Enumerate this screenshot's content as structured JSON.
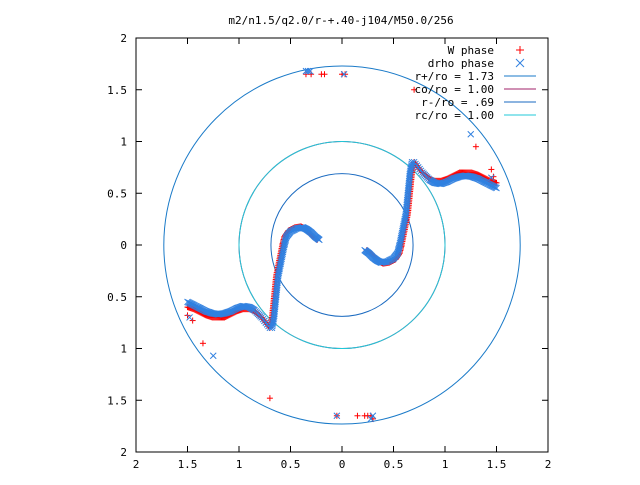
{
  "chart_data": {
    "type": "scatter",
    "title": "m2/n1.5/q2.0/r-+.40-j104/M50.0/256",
    "xlabel": "",
    "ylabel": "",
    "xlim": [
      -2,
      2
    ],
    "ylim": [
      -2,
      2
    ],
    "x_tick_values": [
      -2,
      -1.5,
      -1,
      -0.5,
      0,
      0.5,
      1,
      1.5,
      2
    ],
    "x_tick_labels": [
      "2",
      "1.5",
      "1",
      "0.5",
      "0",
      "0.5",
      "1",
      "1.5",
      "2"
    ],
    "y_tick_values": [
      2,
      1.5,
      1,
      0.5,
      0,
      -0.5,
      -1,
      -1.5,
      -2
    ],
    "y_tick_labels": [
      "2",
      "1.5",
      "1",
      "0.5",
      "0",
      "0.5",
      "1",
      "1.5",
      "2"
    ],
    "grid": false,
    "legend_position": "top-right",
    "series": [
      {
        "name": "W phase",
        "marker": "plus",
        "color": "#ff0000",
        "segments": [
          [
            [
              0.7,
              0.8
            ],
            [
              0.78,
              0.7
            ],
            [
              0.85,
              0.64
            ],
            [
              0.9,
              0.62
            ],
            [
              0.96,
              0.62
            ],
            [
              1.02,
              0.64
            ],
            [
              1.08,
              0.67
            ],
            [
              1.14,
              0.7
            ],
            [
              1.2,
              0.7
            ],
            [
              1.26,
              0.7
            ],
            [
              1.32,
              0.68
            ],
            [
              1.38,
              0.65
            ],
            [
              1.44,
              0.62
            ],
            [
              1.5,
              0.6
            ]
          ],
          [
            [
              0.7,
              0.8
            ],
            [
              0.68,
              0.7
            ],
            [
              0.67,
              0.6
            ],
            [
              0.66,
              0.5
            ],
            [
              0.65,
              0.4
            ],
            [
              0.64,
              0.3
            ],
            [
              0.62,
              0.2
            ],
            [
              0.6,
              0.1
            ],
            [
              0.58,
              0.0
            ],
            [
              0.56,
              -0.08
            ],
            [
              0.52,
              -0.14
            ],
            [
              0.46,
              -0.17
            ],
            [
              0.4,
              -0.18
            ],
            [
              0.36,
              -0.16
            ],
            [
              0.32,
              -0.12
            ],
            [
              0.28,
              -0.08
            ],
            [
              0.24,
              -0.05
            ]
          ],
          [
            [
              -0.7,
              -0.8
            ],
            [
              -0.78,
              -0.7
            ],
            [
              -0.85,
              -0.64
            ],
            [
              -0.9,
              -0.62
            ],
            [
              -0.96,
              -0.62
            ],
            [
              -1.02,
              -0.64
            ],
            [
              -1.08,
              -0.67
            ],
            [
              -1.14,
              -0.7
            ],
            [
              -1.2,
              -0.7
            ],
            [
              -1.26,
              -0.7
            ],
            [
              -1.32,
              -0.68
            ],
            [
              -1.38,
              -0.65
            ],
            [
              -1.44,
              -0.62
            ],
            [
              -1.5,
              -0.6
            ]
          ],
          [
            [
              -0.7,
              -0.8
            ],
            [
              -0.68,
              -0.7
            ],
            [
              -0.67,
              -0.6
            ],
            [
              -0.66,
              -0.5
            ],
            [
              -0.65,
              -0.4
            ],
            [
              -0.64,
              -0.3
            ],
            [
              -0.62,
              -0.2
            ],
            [
              -0.6,
              -0.1
            ],
            [
              -0.58,
              0.0
            ],
            [
              -0.56,
              0.08
            ],
            [
              -0.52,
              0.14
            ],
            [
              -0.46,
              0.17
            ],
            [
              -0.4,
              0.18
            ],
            [
              -0.36,
              0.16
            ],
            [
              -0.32,
              0.12
            ],
            [
              -0.28,
              0.08
            ],
            [
              -0.24,
              0.05
            ]
          ]
        ],
        "points": [
          [
            -0.35,
            1.65
          ],
          [
            -0.3,
            1.65
          ],
          [
            -0.2,
            1.65
          ],
          [
            -0.17,
            1.65
          ],
          [
            0.0,
            1.65
          ],
          [
            0.03,
            1.65
          ],
          [
            0.7,
            1.5
          ],
          [
            1.3,
            0.95
          ],
          [
            1.45,
            0.73
          ],
          [
            1.47,
            0.66
          ],
          [
            -1.5,
            -0.68
          ],
          [
            -1.45,
            -0.73
          ],
          [
            -1.35,
            -0.95
          ],
          [
            -0.7,
            -1.48
          ],
          [
            -0.05,
            -1.65
          ],
          [
            0.15,
            -1.65
          ],
          [
            0.22,
            -1.65
          ],
          [
            0.25,
            -1.65
          ],
          [
            0.28,
            -1.65
          ],
          [
            0.3,
            -1.68
          ]
        ]
      },
      {
        "name": "drho phase",
        "marker": "x",
        "color": "#3080e0",
        "segments": [
          [
            [
              0.7,
              0.8
            ],
            [
              0.78,
              0.7
            ],
            [
              0.85,
              0.63
            ],
            [
              0.9,
              0.6
            ],
            [
              0.96,
              0.59
            ],
            [
              1.02,
              0.61
            ],
            [
              1.08,
              0.64
            ],
            [
              1.14,
              0.66
            ],
            [
              1.2,
              0.67
            ],
            [
              1.26,
              0.66
            ],
            [
              1.32,
              0.64
            ],
            [
              1.38,
              0.61
            ],
            [
              1.44,
              0.58
            ],
            [
              1.5,
              0.55
            ]
          ],
          [
            [
              0.68,
              0.8
            ],
            [
              0.66,
              0.7
            ],
            [
              0.65,
              0.6
            ],
            [
              0.64,
              0.5
            ],
            [
              0.63,
              0.4
            ],
            [
              0.62,
              0.3
            ],
            [
              0.6,
              0.2
            ],
            [
              0.58,
              0.1
            ],
            [
              0.56,
              0.0
            ],
            [
              0.54,
              -0.08
            ],
            [
              0.5,
              -0.13
            ],
            [
              0.44,
              -0.16
            ],
            [
              0.38,
              -0.17
            ],
            [
              0.34,
              -0.15
            ],
            [
              0.3,
              -0.12
            ],
            [
              0.26,
              -0.08
            ],
            [
              0.22,
              -0.05
            ]
          ],
          [
            [
              -0.7,
              -0.8
            ],
            [
              -0.78,
              -0.7
            ],
            [
              -0.85,
              -0.63
            ],
            [
              -0.9,
              -0.6
            ],
            [
              -0.96,
              -0.59
            ],
            [
              -1.02,
              -0.61
            ],
            [
              -1.08,
              -0.64
            ],
            [
              -1.14,
              -0.66
            ],
            [
              -1.2,
              -0.67
            ],
            [
              -1.26,
              -0.66
            ],
            [
              -1.32,
              -0.64
            ],
            [
              -1.38,
              -0.61
            ],
            [
              -1.44,
              -0.58
            ],
            [
              -1.5,
              -0.55
            ]
          ],
          [
            [
              -0.68,
              -0.8
            ],
            [
              -0.66,
              -0.7
            ],
            [
              -0.65,
              -0.6
            ],
            [
              -0.64,
              -0.5
            ],
            [
              -0.63,
              -0.4
            ],
            [
              -0.62,
              -0.3
            ],
            [
              -0.6,
              -0.2
            ],
            [
              -0.58,
              -0.1
            ],
            [
              -0.56,
              0.0
            ],
            [
              -0.54,
              0.08
            ],
            [
              -0.5,
              0.13
            ],
            [
              -0.44,
              0.16
            ],
            [
              -0.38,
              0.17
            ],
            [
              -0.34,
              0.15
            ],
            [
              -0.3,
              0.12
            ],
            [
              -0.26,
              0.08
            ],
            [
              -0.22,
              0.05
            ]
          ]
        ],
        "points": [
          [
            -0.35,
            1.68
          ],
          [
            -0.33,
            1.68
          ],
          [
            -0.31,
            1.68
          ],
          [
            0.02,
            1.65
          ],
          [
            1.25,
            1.07
          ],
          [
            1.45,
            0.65
          ],
          [
            -1.48,
            -0.7
          ],
          [
            -1.25,
            -1.07
          ],
          [
            -0.05,
            -1.65
          ],
          [
            0.28,
            -1.68
          ],
          [
            0.3,
            -1.65
          ]
        ]
      }
    ],
    "reference_circles": [
      {
        "label": "r+/ro = 1.73",
        "radius": 1.73,
        "color": "#1a7ac8"
      },
      {
        "label": "co/ro = 1.00",
        "radius": 1.0,
        "color": "#a0206a"
      },
      {
        "label": "r-/ro = .69",
        "radius": 0.69,
        "color": "#1a6ac0"
      },
      {
        "label": "rc/ro = 1.00",
        "radius": 1.0,
        "color": "#20c8d8"
      }
    ]
  }
}
